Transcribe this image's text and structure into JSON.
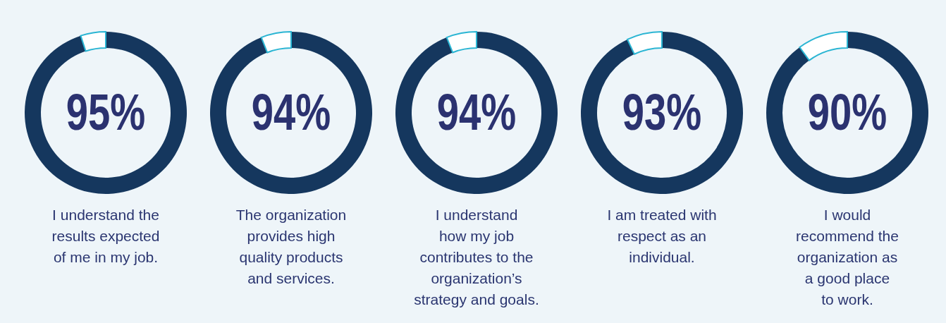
{
  "chart_data": [
    {
      "type": "donut",
      "title": "I understand the\nresults expected\nof me in my job.",
      "categories": [
        null,
        null
      ],
      "values": [
        95,
        5
      ],
      "colors": [
        "#15375e",
        "#ffffff"
      ],
      "value_labels": [
        "95%",
        null
      ]
    },
    {
      "type": "donut",
      "title": "The organization\nprovides high\nquality products\nand services.",
      "categories": [
        null,
        null
      ],
      "values": [
        94,
        6
      ],
      "colors": [
        "#15375e",
        "#ffffff"
      ],
      "value_labels": [
        "94%",
        null
      ]
    },
    {
      "type": "donut",
      "title": "I understand\nhow my job\ncontributes to the\norganization’s\nstrategy and goals.",
      "categories": [
        null,
        null
      ],
      "values": [
        94,
        6
      ],
      "colors": [
        "#15375e",
        "#ffffff"
      ],
      "value_labels": [
        "94%",
        null
      ]
    },
    {
      "type": "donut",
      "title": "I am treated with\nrespect as an\nindividual.",
      "categories": [
        null,
        null
      ],
      "values": [
        93,
        7
      ],
      "colors": [
        "#15375e",
        "#ffffff"
      ],
      "value_labels": [
        "93%",
        null
      ]
    },
    {
      "type": "donut",
      "title": "I would\nrecommend the\norganization as\na good place\nto work.",
      "categories": [
        null,
        null
      ],
      "values": [
        90,
        10
      ],
      "colors": [
        "#15375e",
        "#ffffff"
      ],
      "value_labels": [
        "90%",
        null
      ]
    }
  ]
}
